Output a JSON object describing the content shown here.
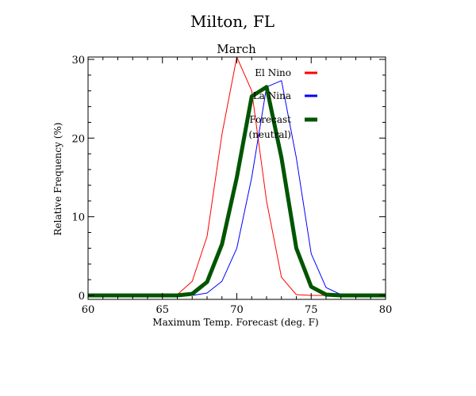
{
  "chart_data": {
    "type": "line",
    "title": "Milton, FL",
    "subtitle": "March",
    "xlabel": "Maximum Temp. Forecast (deg. F)",
    "ylabel": "Relative Frequency (%)",
    "xlim": [
      60,
      80
    ],
    "ylim": [
      0,
      30
    ],
    "xticks": [
      60,
      65,
      70,
      75,
      80
    ],
    "yticks": [
      0,
      10,
      20,
      30
    ],
    "xtick_labels": [
      "60",
      "65",
      "70",
      "75",
      "80"
    ],
    "ytick_labels": [
      "0",
      "10",
      "20",
      "30"
    ],
    "grid": false,
    "legend_position": "top-right",
    "series": [
      {
        "name": "El Nino",
        "color": "#ff0000",
        "line_width": "thin",
        "x": [
          60,
          61,
          62,
          63,
          64,
          65,
          66,
          67,
          68,
          69,
          70,
          71,
          72,
          73,
          74,
          75,
          76,
          77,
          78,
          79,
          80
        ],
        "y": [
          0,
          0,
          0,
          0,
          0,
          0,
          0.1,
          1.8,
          7.5,
          20.5,
          30.3,
          26,
          12,
          2.3,
          0.1,
          0,
          0,
          0,
          0,
          0,
          0
        ]
      },
      {
        "name": "La Nina",
        "color": "#0000ff",
        "line_width": "thin",
        "x": [
          60,
          61,
          62,
          63,
          64,
          65,
          66,
          67,
          68,
          69,
          70,
          71,
          72,
          73,
          74,
          75,
          76,
          77,
          78,
          79,
          80
        ],
        "y": [
          0,
          0,
          0,
          0,
          0,
          0,
          0,
          0,
          0.3,
          1.8,
          6,
          15,
          26.5,
          27.3,
          17.5,
          5.3,
          1,
          0.1,
          0,
          0,
          0
        ]
      },
      {
        "name": "Forecast\n(neutral)",
        "label_lines": [
          "Forecast",
          "(neutral)"
        ],
        "color": "#005500",
        "line_width": "thick",
        "x": [
          60,
          61,
          62,
          63,
          64,
          65,
          66,
          67,
          68,
          69,
          70,
          71,
          72,
          73,
          74,
          75,
          76,
          77,
          78,
          79,
          80
        ],
        "y": [
          0,
          0,
          0,
          0,
          0,
          0,
          0,
          0.2,
          1.7,
          6.5,
          15,
          25.3,
          26.5,
          17.5,
          6,
          1.1,
          0.1,
          0,
          0,
          0,
          0
        ]
      }
    ]
  }
}
